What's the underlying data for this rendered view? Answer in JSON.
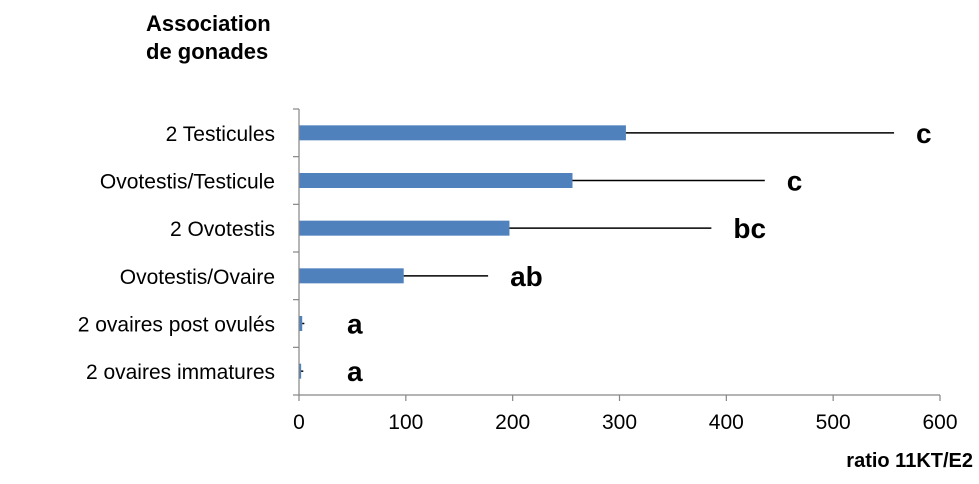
{
  "chart_data": {
    "type": "bar",
    "orientation": "horizontal",
    "title": "",
    "ylabel_lines": [
      "Association",
      "de gonades"
    ],
    "xlabel": "ratio 11KT/E2",
    "categories": [
      "2 Testicules",
      "Ovotestis/Testicule",
      "2 Ovotestis",
      "Ovotestis/Ovaire",
      "2 ovaires post ovulés",
      "2 ovaires immatures"
    ],
    "values": [
      306,
      256,
      197,
      98,
      3,
      2
    ],
    "error_upper": [
      557,
      436,
      386,
      177,
      5,
      4
    ],
    "significance_labels": [
      "c",
      "c",
      "bc",
      "ab",
      "a",
      "a"
    ],
    "xlim": [
      0,
      600
    ],
    "xticks": [
      0,
      100,
      200,
      300,
      400,
      500,
      600
    ],
    "grid": false,
    "legend": "none",
    "colors": {
      "bar": "#4f81bd",
      "axis": "#868686",
      "text": "#000000"
    }
  }
}
